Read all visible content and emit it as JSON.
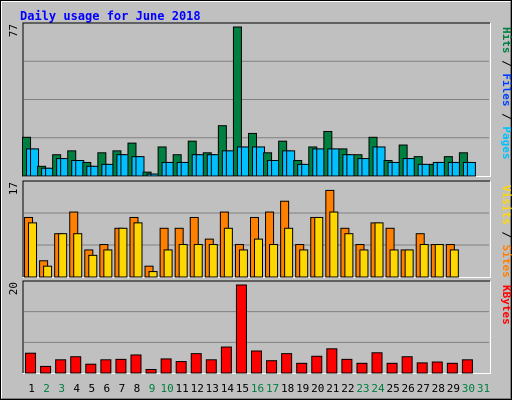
{
  "chart_data": [
    {
      "type": "bar",
      "title": "Daily usage for June 2018",
      "categories": [
        "1",
        "2",
        "3",
        "4",
        "5",
        "6",
        "7",
        "8",
        "9",
        "10",
        "11",
        "12",
        "13",
        "14",
        "15",
        "16",
        "17",
        "18",
        "19",
        "20",
        "21",
        "22",
        "23",
        "24",
        "25",
        "26",
        "27",
        "28",
        "29",
        "30",
        "31"
      ],
      "weekend_days": [
        "2",
        "3",
        "9",
        "10",
        "16",
        "17",
        "23",
        "24",
        "30",
        "31"
      ],
      "ymax": 77,
      "ymax_label": "77",
      "side_label": [
        "Pages",
        "Files",
        "Hits"
      ],
      "series": [
        {
          "name": "Hits",
          "color": "#008040",
          "values": [
            20,
            5,
            11,
            13,
            7,
            12,
            13,
            17,
            2,
            15,
            11,
            18,
            12,
            26,
            77,
            22,
            12,
            18,
            8,
            15,
            23,
            14,
            11,
            20,
            8,
            16,
            10,
            6,
            10,
            12,
            0
          ]
        },
        {
          "name": "Files",
          "color": "#00c0ff",
          "values": [
            14,
            4,
            9,
            8,
            5,
            6,
            11,
            10,
            1,
            7,
            7,
            11,
            11,
            13,
            15,
            15,
            8,
            13,
            6,
            14,
            14,
            11,
            9,
            15,
            7,
            9,
            6,
            7,
            7,
            7,
            0
          ]
        },
        {
          "name": "Pages",
          "color": "#00c0ff",
          "values": [
            14,
            4,
            9,
            8,
            5,
            6,
            11,
            10,
            1,
            7,
            7,
            11,
            11,
            13,
            15,
            15,
            8,
            13,
            6,
            14,
            14,
            11,
            9,
            15,
            7,
            9,
            6,
            7,
            7,
            7,
            0
          ]
        }
      ]
    },
    {
      "type": "bar",
      "ymax": 17,
      "ymax_label": "17",
      "side_label": [
        "Sites",
        "Visits"
      ],
      "series": [
        {
          "name": "Visits",
          "color": "#ff8000",
          "values": [
            11,
            3,
            8,
            12,
            5,
            6,
            9,
            11,
            2,
            9,
            9,
            11,
            7,
            12,
            6,
            11,
            12,
            14,
            6,
            11,
            16,
            9,
            6,
            10,
            9,
            5,
            8,
            6,
            6,
            0,
            0
          ]
        },
        {
          "name": "Sites",
          "color": "#ffd700",
          "values": [
            10,
            2,
            8,
            8,
            4,
            5,
            9,
            10,
            1,
            5,
            6,
            6,
            6,
            9,
            5,
            7,
            6,
            9,
            5,
            11,
            12,
            8,
            5,
            10,
            5,
            5,
            6,
            6,
            5,
            0,
            0
          ]
        }
      ]
    },
    {
      "type": "bar",
      "ymax": 20,
      "ymax_label": "20",
      "side_label": [
        "KBytes"
      ],
      "series": [
        {
          "name": "KBytes",
          "color": "#ff0000",
          "values": [
            4.5,
            1.5,
            3,
            3.7,
            2,
            3,
            3.1,
            4.1,
            0.8,
            3.2,
            2.6,
            4.4,
            3,
            5.9,
            20,
            5,
            2.8,
            4.4,
            2.2,
            3.8,
            5.5,
            3.1,
            2.2,
            4.6,
            2.2,
            3.7,
            2.3,
            2.5,
            2.2,
            3,
            0
          ]
        }
      ]
    }
  ]
}
